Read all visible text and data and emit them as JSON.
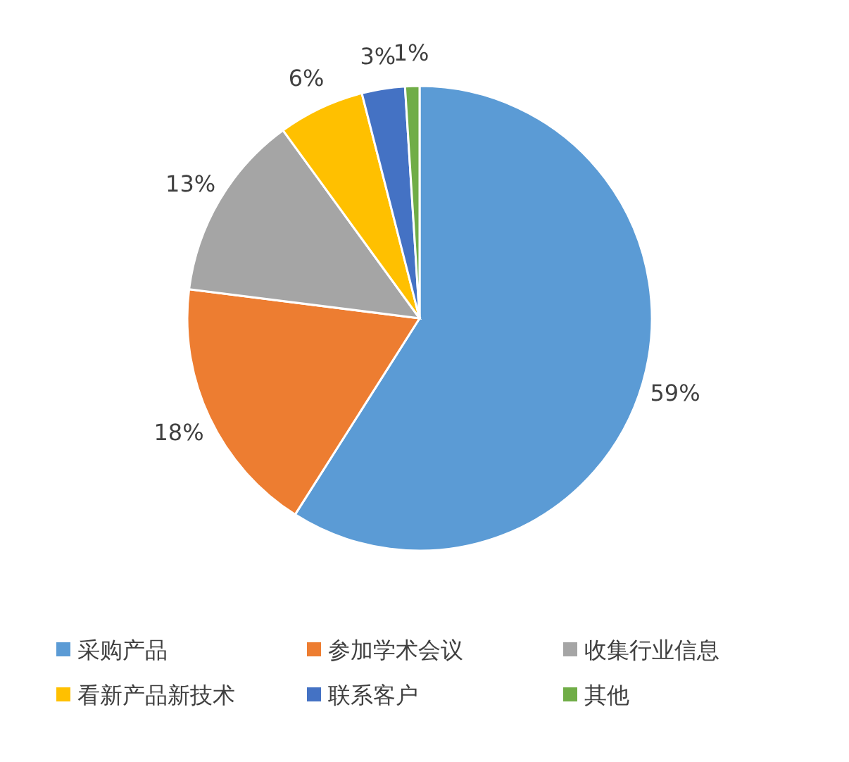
{
  "chart_data": {
    "type": "pie",
    "categories": [
      "采购产品",
      "参加学术会议",
      "收集行业信息",
      "看新产品新技术",
      "联系客户",
      "其他"
    ],
    "values": [
      59,
      18,
      13,
      6,
      3,
      1
    ],
    "value_labels": [
      "59%",
      "18%",
      "13%",
      "6%",
      "3%",
      "1%"
    ],
    "colors": [
      "#5b9bd5",
      "#ed7d31",
      "#a5a5a5",
      "#ffc000",
      "#4472c4",
      "#70ad47"
    ],
    "legend": "bottom"
  }
}
